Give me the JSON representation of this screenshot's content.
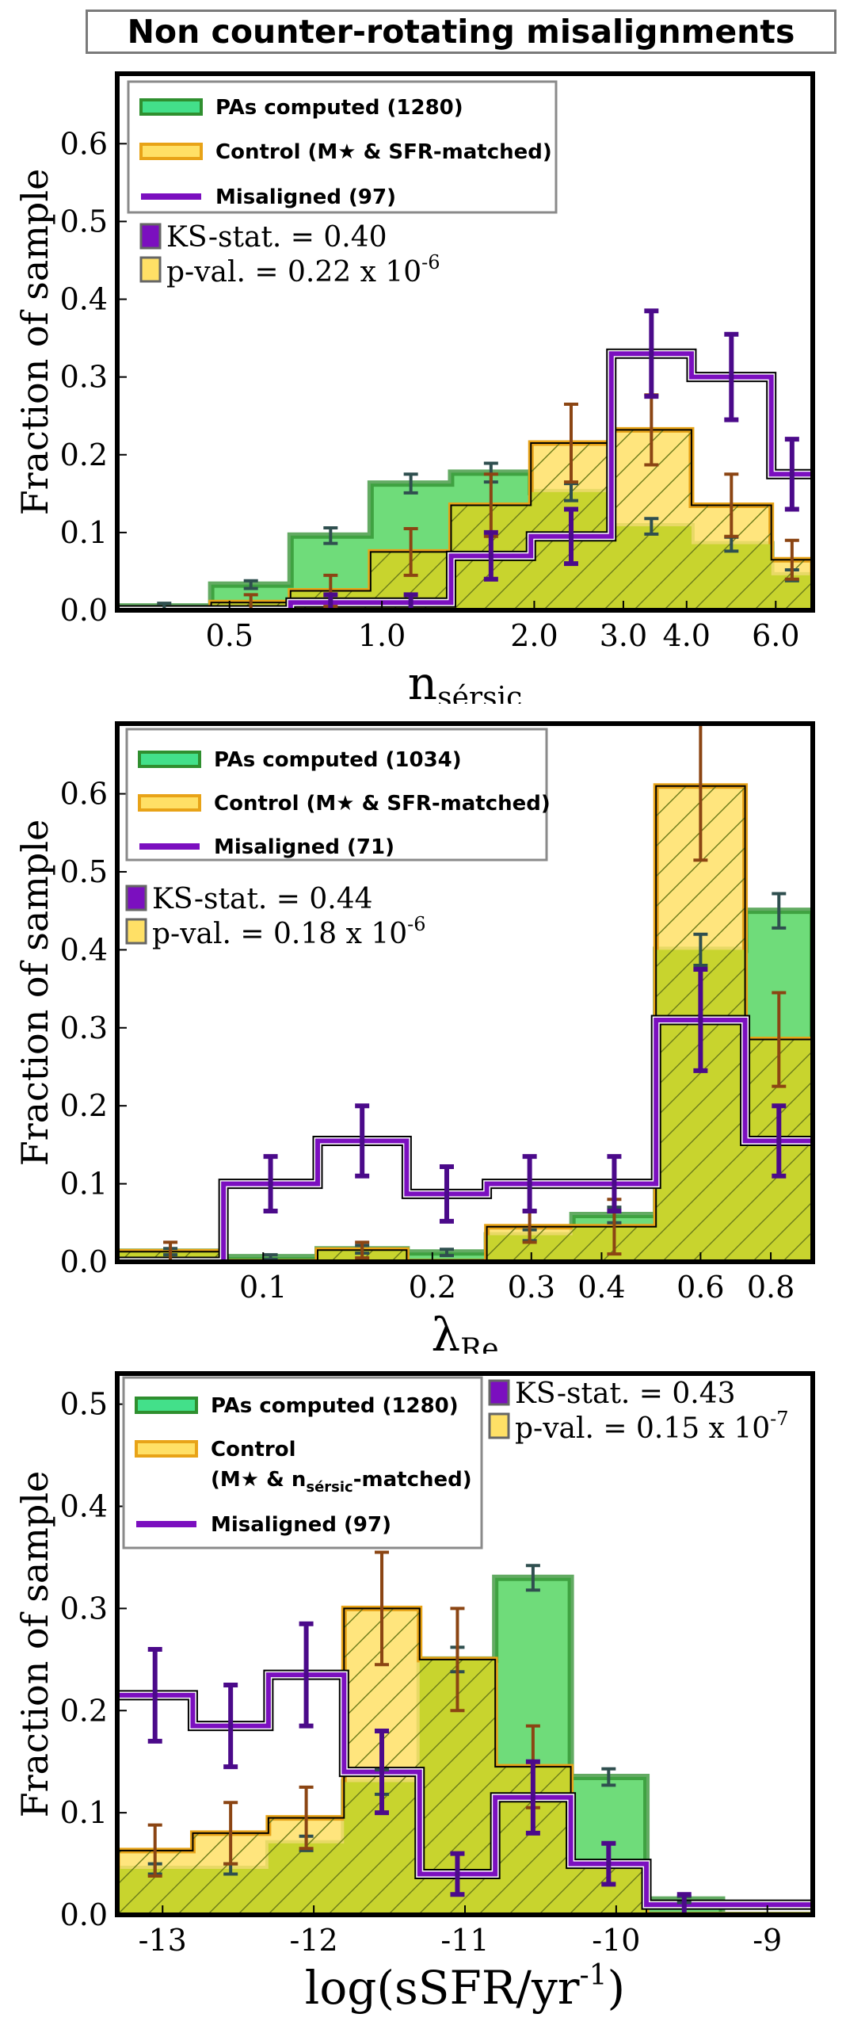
{
  "title": "Non counter-rotating misalignments",
  "colors": {
    "pas_fill": "#6fdc7a",
    "pas_edge": "#2f8f2f",
    "pas_err": "#2f4f4f",
    "control_fill": "#ffe066",
    "control_edge": "#e8a317",
    "control_err": "#8b4513",
    "mis_edge": "#7b0fbf",
    "mis_err": "#4b0a8a",
    "overlap": "#c8d42e",
    "hatch": "#6b7a1a"
  },
  "chart_data": [
    {
      "type": "histogram",
      "xscale": "log",
      "xlim": [
        0.3,
        7.1
      ],
      "ylim": [
        0,
        0.69
      ],
      "xlabel": "n",
      "xlabel_sub": "sérsic",
      "ylabel": "Fraction of sample",
      "xticks": [
        0.5,
        1.0,
        2.0,
        3.0,
        4.0,
        6.0
      ],
      "xtick_labels": [
        "0.5",
        "1.0",
        "2.0",
        "3.0",
        "4.0",
        "6.0"
      ],
      "yticks": [
        0.0,
        0.1,
        0.2,
        0.3,
        0.4,
        0.5,
        0.6
      ],
      "ytick_labels": [
        "0.0",
        "0.1",
        "0.2",
        "0.3",
        "0.4",
        "0.5",
        "0.6"
      ],
      "edges": [
        0.3,
        0.46,
        0.66,
        0.95,
        1.37,
        1.97,
        2.84,
        4.09,
        5.88,
        7.1
      ],
      "legend": [
        "PAs computed (1280)",
        "Control (M★ & SFR-matched)",
        "Misaligned (97)"
      ],
      "stats": [
        "KS-stat. = 0.40",
        "p-val. = 0.22 x 10",
        "-6"
      ],
      "series": [
        {
          "name": "PAs computed",
          "values": [
            0.005,
            0.033,
            0.096,
            0.163,
            0.177,
            0.152,
            0.108,
            0.085,
            0.045
          ],
          "err": [
            0.004,
            0.005,
            0.01,
            0.012,
            0.012,
            0.011,
            0.01,
            0.009,
            0.007
          ]
        },
        {
          "name": "Control",
          "values": [
            0.0,
            0.01,
            0.025,
            0.075,
            0.135,
            0.215,
            0.232,
            0.135,
            0.065
          ],
          "err": [
            0.0,
            0.01,
            0.02,
            0.03,
            0.04,
            0.05,
            0.045,
            0.04,
            0.025
          ]
        },
        {
          "name": "Misaligned",
          "values": [
            0.0,
            0.0,
            0.0,
            0.01,
            0.01,
            0.07,
            0.095,
            0.33,
            0.3,
            0.175
          ],
          "err": [
            0.0,
            0.0,
            0.0,
            0.01,
            0.01,
            0.03,
            0.035,
            0.055,
            0.055,
            0.045
          ],
          "shift": true
        }
      ]
    },
    {
      "type": "histogram",
      "xscale": "log",
      "xlim": [
        0.055,
        0.95
      ],
      "ylim": [
        0,
        0.69
      ],
      "xlabel": "λ",
      "xlabel_sub": "Re",
      "ylabel": "Fraction of sample",
      "xticks": [
        0.1,
        0.2,
        0.3,
        0.4,
        0.6,
        0.8
      ],
      "xtick_labels": [
        "0.1",
        "0.2",
        "0.3",
        "0.4",
        "0.6",
        "0.8"
      ],
      "yticks": [
        0.0,
        0.1,
        0.2,
        0.3,
        0.4,
        0.5,
        0.6
      ],
      "ytick_labels": [
        "0.0",
        "0.1",
        "0.2",
        "0.3",
        "0.4",
        "0.5",
        "0.6"
      ],
      "edges": [
        0.055,
        0.085,
        0.125,
        0.18,
        0.25,
        0.355,
        0.5,
        0.72,
        0.95
      ],
      "legend": [
        "PAs computed (1034)",
        "Control (M★ & SFR-matched)",
        "Misaligned (71)"
      ],
      "stats": [
        "KS-stat. = 0.44",
        "p-val. = 0.18 x 10",
        "-6"
      ],
      "series": [
        {
          "name": "PAs computed",
          "values": [
            0.013,
            0.006,
            0.016,
            0.012,
            0.034,
            0.06,
            0.4,
            0.45
          ],
          "err": [
            0.004,
            0.003,
            0.005,
            0.004,
            0.007,
            0.01,
            0.02,
            0.022
          ]
        },
        {
          "name": "Control",
          "values": [
            0.013,
            0.0,
            0.015,
            0.0,
            0.045,
            0.045,
            0.61,
            0.285
          ],
          "err": [
            0.012,
            0.0,
            0.01,
            0.0,
            0.02,
            0.035,
            0.095,
            0.06
          ]
        },
        {
          "name": "Misaligned",
          "values": [
            0.0,
            0.1,
            0.155,
            0.087,
            0.1,
            0.1,
            0.31,
            0.155
          ],
          "err": [
            0.0,
            0.035,
            0.045,
            0.035,
            0.035,
            0.035,
            0.065,
            0.045
          ]
        }
      ]
    },
    {
      "type": "histogram",
      "xscale": "linear",
      "xlim": [
        -13.3,
        -8.7
      ],
      "ylim": [
        0,
        0.53
      ],
      "xlabel": "log(sSFR/yr",
      "xlabel_sup": "-1",
      "xlabel_tail": ")",
      "ylabel": "Fraction of sample",
      "xticks": [
        -13,
        -12,
        -11,
        -10,
        -9
      ],
      "xtick_labels": [
        "-13",
        "-12",
        "-11",
        "-10",
        "-9"
      ],
      "yticks": [
        0.0,
        0.1,
        0.2,
        0.3,
        0.4,
        0.5
      ],
      "ytick_labels": [
        "0.0",
        "0.1",
        "0.2",
        "0.3",
        "0.4",
        "0.5"
      ],
      "edges": [
        -13.3,
        -12.8,
        -12.3,
        -11.8,
        -11.3,
        -10.8,
        -10.3,
        -9.8,
        -9.3,
        -8.7
      ],
      "legend": [
        "PAs computed (1280)",
        "Control",
        "(M★ & n",
        "sérsic",
        "-matched)",
        "Misaligned (97)"
      ],
      "stats": [
        "KS-stat. = 0.43",
        "p-val. = 0.15 x 10",
        "-7"
      ],
      "series": [
        {
          "name": "PAs computed",
          "values": [
            0.045,
            0.045,
            0.07,
            0.13,
            0.25,
            0.33,
            0.135,
            0.015,
            0.0
          ],
          "err": [
            0.005,
            0.005,
            0.007,
            0.012,
            0.012,
            0.012,
            0.008,
            0.003,
            0.0
          ]
        },
        {
          "name": "Control",
          "values": [
            0.063,
            0.08,
            0.095,
            0.3,
            0.25,
            0.145,
            0.05,
            0.0,
            0.0
          ],
          "err": [
            0.025,
            0.03,
            0.03,
            0.055,
            0.05,
            0.04,
            0.02,
            0.0,
            0.0
          ]
        },
        {
          "name": "Misaligned",
          "values": [
            0.215,
            0.185,
            0.235,
            0.14,
            0.04,
            0.115,
            0.05,
            0.01,
            0.01
          ],
          "err": [
            0.045,
            0.04,
            0.05,
            0.04,
            0.02,
            0.035,
            0.02,
            0.01,
            0.0
          ]
        }
      ]
    }
  ]
}
